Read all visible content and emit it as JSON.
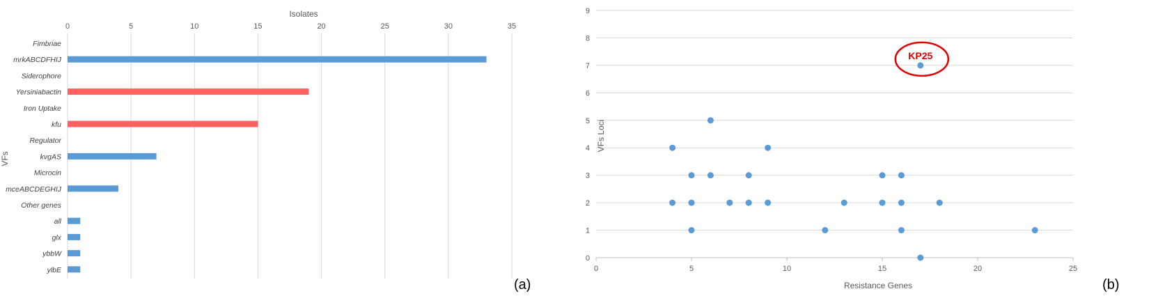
{
  "colors": {
    "blue": "#5b9bd5",
    "red": "#ff6161",
    "grid": "#d9d9d9",
    "callout": "#e00000"
  },
  "chart_data": [
    {
      "type": "bar",
      "orientation": "horizontal",
      "panel_label": "(a)",
      "xlabel": "Isolates",
      "ylabel": "VFs",
      "xlim": [
        0,
        35
      ],
      "xticks": [
        "0",
        "5",
        "10",
        "15",
        "20",
        "25",
        "30",
        "35"
      ],
      "categories": [
        "Fimbriae",
        "mrkABCDFHIJ",
        "Siderophore",
        "Yersiniabactin",
        "Iron Uptake",
        "kfu",
        "Regulator",
        "kvgAS",
        "Microcin",
        "mceABCDEGHIJ",
        "Other genes",
        "all",
        "glx",
        "ybbW",
        "ylbE"
      ],
      "values": [
        null,
        33,
        null,
        19,
        null,
        15,
        null,
        7,
        null,
        4,
        null,
        1,
        1,
        1,
        1
      ],
      "bar_colors": [
        "",
        "blue",
        "",
        "red",
        "",
        "red",
        "",
        "blue",
        "",
        "blue",
        "",
        "blue",
        "blue",
        "blue",
        "blue"
      ],
      "grid": true
    },
    {
      "type": "scatter",
      "panel_label": "(b)",
      "xlabel": "Resistance Genes",
      "ylabel": "VFs Loci",
      "xlim": [
        0,
        25
      ],
      "ylim": [
        0,
        9
      ],
      "xticks": [
        "0",
        "5",
        "10",
        "15",
        "20",
        "25"
      ],
      "yticks": [
        "0",
        "1",
        "2",
        "3",
        "4",
        "5",
        "6",
        "7",
        "8",
        "9"
      ],
      "points": [
        {
          "x": 17,
          "y": 7
        },
        {
          "x": 6,
          "y": 5
        },
        {
          "x": 4,
          "y": 4
        },
        {
          "x": 9,
          "y": 4
        },
        {
          "x": 5,
          "y": 3
        },
        {
          "x": 6,
          "y": 3
        },
        {
          "x": 8,
          "y": 3
        },
        {
          "x": 15,
          "y": 3
        },
        {
          "x": 16,
          "y": 3
        },
        {
          "x": 4,
          "y": 2
        },
        {
          "x": 5,
          "y": 2
        },
        {
          "x": 7,
          "y": 2
        },
        {
          "x": 8,
          "y": 2
        },
        {
          "x": 9,
          "y": 2
        },
        {
          "x": 13,
          "y": 2
        },
        {
          "x": 15,
          "y": 2
        },
        {
          "x": 16,
          "y": 2
        },
        {
          "x": 18,
          "y": 2
        },
        {
          "x": 5,
          "y": 1
        },
        {
          "x": 12,
          "y": 1
        },
        {
          "x": 16,
          "y": 1
        },
        {
          "x": 23,
          "y": 1
        },
        {
          "x": 17,
          "y": 0
        }
      ],
      "annotation": {
        "text": "KP25",
        "x": 17,
        "y": 7
      },
      "grid": true
    }
  ]
}
